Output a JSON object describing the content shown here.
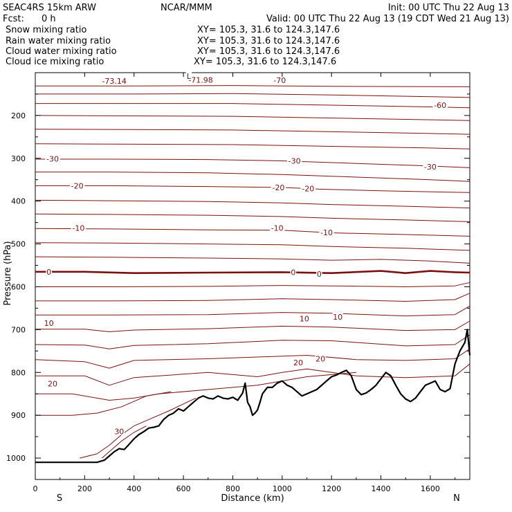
{
  "header": {
    "model": "SEAC4RS 15km ARW",
    "center": "NCAR/MMM",
    "init": "Init: 00 UTC Thu 22 Aug 13",
    "fcst_label": "Fcst:",
    "fcst_value": "0 h",
    "valid": "Valid: 00 UTC Thu 22 Aug 13 (19 CDT Wed 21 Aug 13)"
  },
  "legend": [
    {
      "label": "Snow mixing ratio",
      "xy": "XY= 105.3, 31.6 to 124.3,147.6",
      "color": "#000000"
    },
    {
      "label": "Rain water mixing ratio",
      "xy": "XY= 105.3, 31.6 to 124.3,147.6",
      "color": "#ff0000"
    },
    {
      "label": "Cloud water mixing ratio",
      "xy": "XY= 105.3, 31.6 to 124.3,147.6",
      "color": "#0000ff"
    },
    {
      "label": "Cloud ice mixing ratio",
      "xy": "XY= 105.3, 31.6 to 124.3,147.6",
      "color": "#000000"
    }
  ],
  "chart_data": {
    "type": "line",
    "xlabel": "Distance (km)",
    "ylabel": "Pressure (hPa)",
    "xlim": [
      0,
      1760
    ],
    "ylim": [
      1050,
      100
    ],
    "x_ticks": [
      "0",
      "200",
      "400",
      "600",
      "800",
      "1000",
      "1200",
      "1400",
      "1600"
    ],
    "y_ticks": [
      "200",
      "300",
      "400",
      "500",
      "600",
      "700",
      "800",
      "900",
      "1000"
    ],
    "y_tick_values": [
      200,
      300,
      400,
      500,
      600,
      700,
      800,
      900,
      1000
    ],
    "x_direction_labels": {
      "left": "S",
      "right": "N"
    },
    "contour_color": "#7a1010",
    "terrain_color": "#000000",
    "contour_labels": [
      {
        "text": "-73.14",
        "x": 320,
        "p": 119
      },
      {
        "text": "-71.98",
        "x": 670,
        "p": 117
      },
      {
        "text": "L",
        "x": 622,
        "p": 108
      },
      {
        "text": "-70",
        "x": 990,
        "p": 118
      },
      {
        "text": "-60",
        "x": 1640,
        "p": 176
      },
      {
        "text": "-30",
        "x": 70,
        "p": 301
      },
      {
        "text": "-30",
        "x": 1050,
        "p": 306
      },
      {
        "text": "-30",
        "x": 1600,
        "p": 320
      },
      {
        "text": "-20",
        "x": 170,
        "p": 364
      },
      {
        "text": "-20",
        "x": 985,
        "p": 368
      },
      {
        "text": "-20",
        "x": 1105,
        "p": 371
      },
      {
        "text": "-10",
        "x": 175,
        "p": 463
      },
      {
        "text": "-10",
        "x": 980,
        "p": 463
      },
      {
        "text": "-10",
        "x": 1180,
        "p": 473
      },
      {
        "text": "0",
        "x": 55,
        "p": 565
      },
      {
        "text": "0",
        "x": 1045,
        "p": 566
      },
      {
        "text": "0",
        "x": 1150,
        "p": 570
      },
      {
        "text": "10",
        "x": 55,
        "p": 685
      },
      {
        "text": "10",
        "x": 1090,
        "p": 674
      },
      {
        "text": "10",
        "x": 1225,
        "p": 670
      },
      {
        "text": "20",
        "x": 70,
        "p": 826
      },
      {
        "text": "20",
        "x": 1065,
        "p": 777
      },
      {
        "text": "20",
        "x": 1155,
        "p": 768
      },
      {
        "text": "30",
        "x": 340,
        "p": 938
      }
    ],
    "contours": [
      {
        "x": [
          0,
          400,
          800,
          1200,
          1760
        ],
        "p": [
          131,
          131,
          130,
          132,
          133
        ]
      },
      {
        "x": [
          0,
          400,
          800,
          1200,
          1600,
          1760
        ],
        "p": [
          150,
          150,
          149,
          152,
          156,
          158
        ]
      },
      {
        "x": [
          0,
          400,
          800,
          1200,
          1600,
          1760
        ],
        "p": [
          172,
          172,
          172,
          176,
          180,
          182
        ]
      },
      {
        "x": [
          0,
          400,
          800,
          1200,
          1600,
          1760
        ],
        "p": [
          200,
          201,
          202,
          206,
          210,
          212
        ]
      },
      {
        "x": [
          0,
          400,
          800,
          1200,
          1600,
          1760
        ],
        "p": [
          232,
          233,
          234,
          238,
          242,
          244
        ]
      },
      {
        "x": [
          0,
          400,
          800,
          1200,
          1600,
          1760
        ],
        "p": [
          266,
          267,
          268,
          272,
          276,
          278
        ]
      },
      {
        "x": [
          0,
          300,
          700,
          1000,
          1300,
          1600,
          1760
        ],
        "p": [
          302,
          302,
          303,
          306,
          312,
          318,
          322
        ]
      },
      {
        "x": [
          0,
          300,
          700,
          1000,
          1300,
          1600,
          1760
        ],
        "p": [
          332,
          332,
          334,
          338,
          344,
          350,
          354
        ]
      },
      {
        "x": [
          0,
          300,
          700,
          1000,
          1150,
          1400,
          1760
        ],
        "p": [
          364,
          364,
          366,
          368,
          372,
          376,
          380
        ]
      },
      {
        "x": [
          0,
          300,
          700,
          1000,
          1200,
          1500,
          1760
        ],
        "p": [
          398,
          399,
          401,
          404,
          408,
          412,
          416
        ]
      },
      {
        "x": [
          0,
          300,
          700,
          1000,
          1200,
          1500,
          1760
        ],
        "p": [
          430,
          431,
          433,
          436,
          440,
          444,
          448
        ]
      },
      {
        "x": [
          0,
          300,
          700,
          1000,
          1200,
          1500,
          1760
        ],
        "p": [
          464,
          465,
          467,
          468,
          474,
          478,
          482
        ]
      },
      {
        "x": [
          0,
          300,
          700,
          1000,
          1200,
          1500,
          1760
        ],
        "p": [
          497,
          498,
          500,
          502,
          506,
          510,
          515
        ]
      },
      {
        "x": [
          0,
          300,
          700,
          1000,
          1200,
          1400,
          1600,
          1760
        ],
        "p": [
          530,
          531,
          533,
          535,
          538,
          536,
          540,
          545
        ]
      },
      {
        "x": [
          0,
          200,
          400,
          700,
          1000,
          1200,
          1400,
          1500,
          1600,
          1700,
          1760
        ],
        "p": [
          565,
          565,
          568,
          567,
          566,
          568,
          563,
          568,
          563,
          566,
          567
        ],
        "bold": true
      },
      {
        "x": [
          0,
          300,
          700,
          1000,
          1200,
          1500,
          1700,
          1760
        ],
        "p": [
          600,
          600,
          599,
          597,
          598,
          600,
          598,
          590
        ]
      },
      {
        "x": [
          0,
          300,
          700,
          1000,
          1200,
          1500,
          1700,
          1760
        ],
        "p": [
          633,
          633,
          632,
          628,
          630,
          634,
          630,
          615
        ]
      },
      {
        "x": [
          0,
          300,
          700,
          1000,
          1200,
          1500,
          1700,
          1760
        ],
        "p": [
          666,
          666,
          665,
          660,
          662,
          668,
          665,
          645
        ]
      },
      {
        "x": [
          0,
          200,
          300,
          400,
          700,
          1000,
          1200,
          1500,
          1700,
          1760
        ],
        "p": [
          699,
          699,
          705,
          701,
          698,
          692,
          694,
          702,
          700,
          680
        ]
      },
      {
        "x": [
          0,
          200,
          300,
          400,
          700,
          1000,
          1200,
          1500,
          1700,
          1760
        ],
        "p": [
          735,
          736,
          745,
          737,
          733,
          725,
          726,
          738,
          735,
          712
        ]
      },
      {
        "x": [
          0,
          200,
          300,
          400,
          700,
          900,
          1100,
          1300,
          1500,
          1700,
          1760
        ],
        "p": [
          770,
          775,
          790,
          772,
          768,
          764,
          760,
          770,
          772,
          768,
          745
        ]
      },
      {
        "x": [
          0,
          200,
          300,
          400,
          700,
          900,
          1000,
          1100,
          1300,
          1500,
          1700,
          1760
        ],
        "p": [
          808,
          808,
          830,
          812,
          800,
          810,
          800,
          792,
          808,
          812,
          808,
          780
        ]
      },
      {
        "x": [
          0,
          150,
          250,
          300,
          400,
          500,
          700,
          900,
          1000,
          1100,
          1300
        ],
        "p": [
          850,
          850,
          860,
          865,
          860,
          850,
          840,
          830,
          820,
          810,
          800
        ]
      },
      {
        "x": [
          0,
          150,
          250,
          350,
          450,
          550
        ],
        "p": [
          900,
          900,
          895,
          880,
          855,
          845
        ]
      },
      {
        "x": [
          180,
          250,
          300,
          350,
          400,
          460,
          540,
          650
        ],
        "p": [
          1000,
          990,
          970,
          945,
          925,
          910,
          890,
          860
        ]
      },
      {
        "x": [
          270,
          300,
          350,
          400,
          450
        ],
        "p": [
          1000,
          985,
          960,
          940,
          925
        ]
      }
    ],
    "terrain": {
      "x": [
        0,
        100,
        200,
        250,
        280,
        300,
        320,
        340,
        360,
        380,
        400,
        420,
        440,
        460,
        480,
        500,
        520,
        540,
        560,
        580,
        600,
        620,
        640,
        660,
        680,
        700,
        720,
        740,
        760,
        780,
        800,
        820,
        840,
        850,
        860,
        870,
        880,
        890,
        900,
        910,
        920,
        940,
        960,
        980,
        1000,
        1020,
        1040,
        1060,
        1080,
        1100,
        1120,
        1140,
        1160,
        1180,
        1200,
        1220,
        1240,
        1260,
        1280,
        1300,
        1320,
        1340,
        1360,
        1380,
        1400,
        1420,
        1440,
        1460,
        1480,
        1500,
        1520,
        1540,
        1560,
        1580,
        1600,
        1620,
        1640,
        1660,
        1680,
        1700,
        1720,
        1740,
        1750,
        1760
      ],
      "p": [
        1010,
        1010,
        1010,
        1010,
        1005,
        995,
        985,
        978,
        980,
        968,
        955,
        945,
        938,
        930,
        928,
        925,
        910,
        900,
        895,
        885,
        890,
        880,
        870,
        860,
        855,
        860,
        862,
        855,
        860,
        862,
        858,
        865,
        848,
        825,
        870,
        880,
        900,
        895,
        888,
        870,
        850,
        835,
        835,
        825,
        820,
        830,
        835,
        845,
        855,
        850,
        845,
        840,
        830,
        820,
        810,
        806,
        800,
        795,
        808,
        840,
        852,
        848,
        840,
        830,
        815,
        800,
        808,
        830,
        850,
        862,
        868,
        860,
        845,
        830,
        825,
        820,
        840,
        845,
        838,
        780,
        750,
        730,
        700,
        760
      ]
    }
  }
}
